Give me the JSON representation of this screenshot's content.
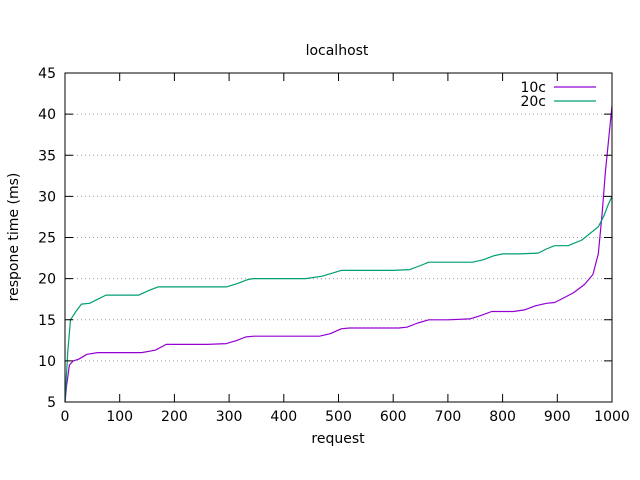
{
  "chart_data": {
    "type": "line",
    "title": "localhost",
    "xlabel": "request",
    "ylabel": "respone time (ms)",
    "xlim": [
      0,
      1000
    ],
    "ylim": [
      5,
      45
    ],
    "xticks": [
      0,
      100,
      200,
      300,
      400,
      500,
      600,
      700,
      800,
      900,
      1000
    ],
    "yticks": [
      5,
      10,
      15,
      20,
      25,
      30,
      35,
      40,
      45
    ],
    "grid": "horizontal dotted",
    "legend_position": "top-right",
    "series": [
      {
        "name": "10c",
        "color": "#9400d3",
        "points": [
          [
            0,
            5
          ],
          [
            3,
            7
          ],
          [
            8,
            9.5
          ],
          [
            15,
            10
          ],
          [
            25,
            10.2
          ],
          [
            40,
            10.8
          ],
          [
            60,
            11
          ],
          [
            100,
            11
          ],
          [
            140,
            11
          ],
          [
            165,
            11.3
          ],
          [
            185,
            12
          ],
          [
            200,
            12
          ],
          [
            260,
            12
          ],
          [
            295,
            12.1
          ],
          [
            315,
            12.5
          ],
          [
            330,
            12.9
          ],
          [
            345,
            13
          ],
          [
            400,
            13
          ],
          [
            465,
            13
          ],
          [
            485,
            13.3
          ],
          [
            505,
            13.9
          ],
          [
            520,
            14
          ],
          [
            560,
            14
          ],
          [
            610,
            14
          ],
          [
            625,
            14.1
          ],
          [
            645,
            14.6
          ],
          [
            665,
            15
          ],
          [
            700,
            15
          ],
          [
            740,
            15.1
          ],
          [
            760,
            15.5
          ],
          [
            780,
            16
          ],
          [
            820,
            16
          ],
          [
            840,
            16.2
          ],
          [
            860,
            16.7
          ],
          [
            880,
            17
          ],
          [
            895,
            17.1
          ],
          [
            910,
            17.6
          ],
          [
            930,
            18.3
          ],
          [
            950,
            19.3
          ],
          [
            965,
            20.5
          ],
          [
            975,
            23
          ],
          [
            982,
            28
          ],
          [
            988,
            33
          ],
          [
            994,
            37
          ],
          [
            1000,
            41
          ]
        ]
      },
      {
        "name": "20c",
        "color": "#009e73",
        "points": [
          [
            0,
            5
          ],
          [
            5,
            11
          ],
          [
            10,
            15
          ],
          [
            20,
            16
          ],
          [
            30,
            16.9
          ],
          [
            45,
            17
          ],
          [
            60,
            17.5
          ],
          [
            75,
            18
          ],
          [
            100,
            18
          ],
          [
            135,
            18
          ],
          [
            155,
            18.6
          ],
          [
            170,
            19
          ],
          [
            200,
            19
          ],
          [
            250,
            19
          ],
          [
            295,
            19
          ],
          [
            315,
            19.4
          ],
          [
            335,
            19.9
          ],
          [
            345,
            20
          ],
          [
            400,
            20
          ],
          [
            440,
            20
          ],
          [
            470,
            20.3
          ],
          [
            490,
            20.7
          ],
          [
            505,
            21
          ],
          [
            550,
            21
          ],
          [
            600,
            21
          ],
          [
            630,
            21.1
          ],
          [
            650,
            21.6
          ],
          [
            665,
            22
          ],
          [
            700,
            22
          ],
          [
            745,
            22
          ],
          [
            765,
            22.3
          ],
          [
            785,
            22.8
          ],
          [
            800,
            23
          ],
          [
            830,
            23
          ],
          [
            865,
            23.1
          ],
          [
            880,
            23.6
          ],
          [
            895,
            24
          ],
          [
            920,
            24
          ],
          [
            945,
            24.7
          ],
          [
            960,
            25.5
          ],
          [
            975,
            26.3
          ],
          [
            985,
            27.6
          ],
          [
            993,
            29
          ],
          [
            1000,
            30
          ]
        ]
      }
    ]
  }
}
